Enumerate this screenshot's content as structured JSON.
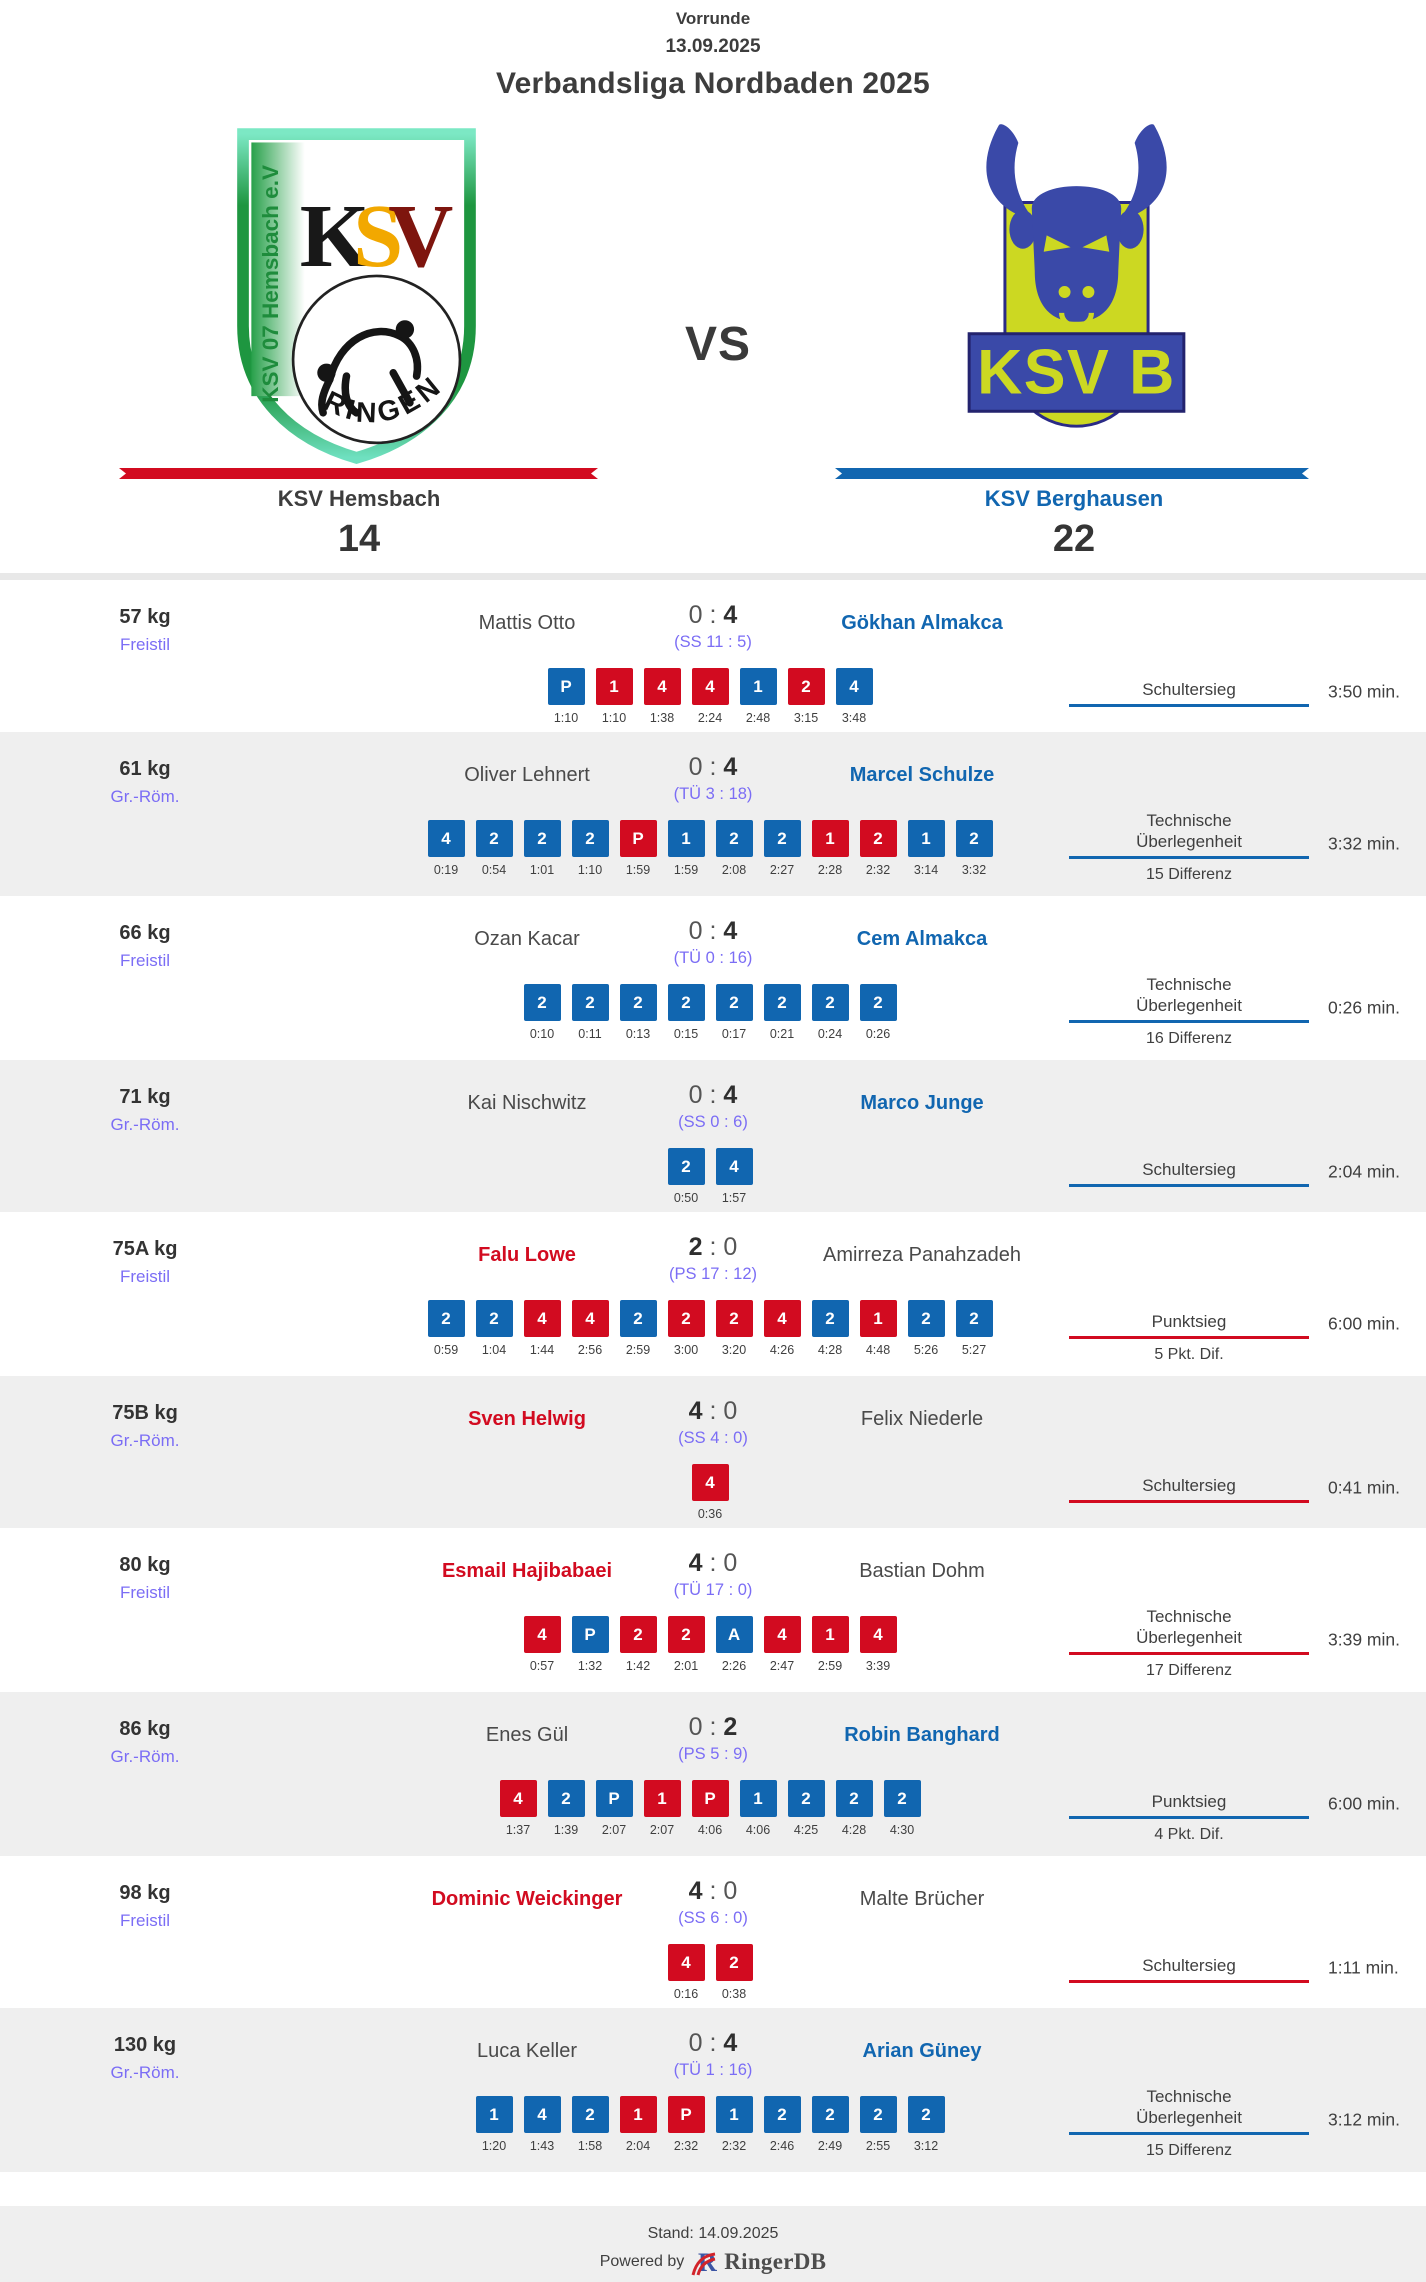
{
  "header": {
    "round": "Vorrunde",
    "date": "13.09.2025",
    "league": "Verbandsliga Nordbaden 2025",
    "vs": "VS"
  },
  "home_team": {
    "name": "KSV Hemsbach",
    "score": "14"
  },
  "away_team": {
    "name": "KSV Berghausen",
    "score": "22"
  },
  "colors": {
    "home": "#d20b20",
    "away": "#1166b0",
    "style_label": "#7b6df5",
    "row_alt_background": "#efefef"
  },
  "bouts": [
    {
      "weight": "57 kg",
      "style": "Freistil",
      "home": "Mattis Otto",
      "away": "Gökhan Almakca",
      "winner": "away",
      "score_home": "0",
      "score_away": "4",
      "detail": "(SS 11 : 5)",
      "result_lines": [
        "Schultersieg"
      ],
      "result_sub": "",
      "duration": "3:50 min.",
      "points": [
        {
          "v": "P",
          "s": "a"
        },
        {
          "v": "1",
          "s": "h"
        },
        {
          "v": "4",
          "s": "h"
        },
        {
          "v": "4",
          "s": "h"
        },
        {
          "v": "1",
          "s": "a"
        },
        {
          "v": "2",
          "s": "h"
        },
        {
          "v": "4",
          "s": "a"
        }
      ],
      "times": [
        "1:10",
        "1:10",
        "1:38",
        "2:24",
        "2:48",
        "3:15",
        "3:48"
      ]
    },
    {
      "weight": "61 kg",
      "style": "Gr.-Röm.",
      "home": "Oliver Lehnert",
      "away": "Marcel Schulze",
      "winner": "away",
      "score_home": "0",
      "score_away": "4",
      "detail": "(TÜ 3 : 18)",
      "result_lines": [
        "Technische",
        "Überlegenheit"
      ],
      "result_sub": "15 Differenz",
      "duration": "3:32 min.",
      "points": [
        {
          "v": "4",
          "s": "a"
        },
        {
          "v": "2",
          "s": "a"
        },
        {
          "v": "2",
          "s": "a"
        },
        {
          "v": "2",
          "s": "a"
        },
        {
          "v": "P",
          "s": "h"
        },
        {
          "v": "1",
          "s": "a"
        },
        {
          "v": "2",
          "s": "a"
        },
        {
          "v": "2",
          "s": "a"
        },
        {
          "v": "1",
          "s": "h"
        },
        {
          "v": "2",
          "s": "h"
        },
        {
          "v": "1",
          "s": "a"
        },
        {
          "v": "2",
          "s": "a"
        }
      ],
      "times": [
        "0:19",
        "0:54",
        "1:01",
        "1:10",
        "1:59",
        "1:59",
        "2:08",
        "2:27",
        "2:28",
        "2:32",
        "3:14",
        "3:32"
      ]
    },
    {
      "weight": "66 kg",
      "style": "Freistil",
      "home": "Ozan Kacar",
      "away": "Cem Almakca",
      "winner": "away",
      "score_home": "0",
      "score_away": "4",
      "detail": "(TÜ 0 : 16)",
      "result_lines": [
        "Technische",
        "Überlegenheit"
      ],
      "result_sub": "16 Differenz",
      "duration": "0:26 min.",
      "points": [
        {
          "v": "2",
          "s": "a"
        },
        {
          "v": "2",
          "s": "a"
        },
        {
          "v": "2",
          "s": "a"
        },
        {
          "v": "2",
          "s": "a"
        },
        {
          "v": "2",
          "s": "a"
        },
        {
          "v": "2",
          "s": "a"
        },
        {
          "v": "2",
          "s": "a"
        },
        {
          "v": "2",
          "s": "a"
        }
      ],
      "times": [
        "0:10",
        "0:11",
        "0:13",
        "0:15",
        "0:17",
        "0:21",
        "0:24",
        "0:26"
      ]
    },
    {
      "weight": "71 kg",
      "style": "Gr.-Röm.",
      "home": "Kai Nischwitz",
      "away": "Marco Junge",
      "winner": "away",
      "score_home": "0",
      "score_away": "4",
      "detail": "(SS 0 : 6)",
      "result_lines": [
        "Schultersieg"
      ],
      "result_sub": "",
      "duration": "2:04 min.",
      "points": [
        {
          "v": "2",
          "s": "a"
        },
        {
          "v": "4",
          "s": "a"
        }
      ],
      "times": [
        "0:50",
        "1:57"
      ]
    },
    {
      "weight": "75A kg",
      "style": "Freistil",
      "home": "Falu Lowe",
      "away": "Amirreza Panahzadeh",
      "winner": "home",
      "score_home": "2",
      "score_away": "0",
      "detail": "(PS 17 : 12)",
      "result_lines": [
        "Punktsieg"
      ],
      "result_sub": "5 Pkt. Dif.",
      "duration": "6:00 min.",
      "points": [
        {
          "v": "2",
          "s": "a"
        },
        {
          "v": "2",
          "s": "a"
        },
        {
          "v": "4",
          "s": "h"
        },
        {
          "v": "4",
          "s": "h"
        },
        {
          "v": "2",
          "s": "a"
        },
        {
          "v": "2",
          "s": "h"
        },
        {
          "v": "2",
          "s": "h"
        },
        {
          "v": "4",
          "s": "h"
        },
        {
          "v": "2",
          "s": "a"
        },
        {
          "v": "1",
          "s": "h"
        },
        {
          "v": "2",
          "s": "a"
        },
        {
          "v": "2",
          "s": "a"
        }
      ],
      "times": [
        "0:59",
        "1:04",
        "1:44",
        "2:56",
        "2:59",
        "3:00",
        "3:20",
        "4:26",
        "4:28",
        "4:48",
        "5:26",
        "5:27"
      ]
    },
    {
      "weight": "75B kg",
      "style": "Gr.-Röm.",
      "home": "Sven Helwig",
      "away": "Felix Niederle",
      "winner": "home",
      "score_home": "4",
      "score_away": "0",
      "detail": "(SS 4 : 0)",
      "result_lines": [
        "Schultersieg"
      ],
      "result_sub": "",
      "duration": "0:41 min.",
      "points": [
        {
          "v": "4",
          "s": "h"
        }
      ],
      "times": [
        "0:36"
      ]
    },
    {
      "weight": "80 kg",
      "style": "Freistil",
      "home": "Esmail Hajibabaei",
      "away": "Bastian Dohm",
      "winner": "home",
      "score_home": "4",
      "score_away": "0",
      "detail": "(TÜ 17 : 0)",
      "result_lines": [
        "Technische",
        "Überlegenheit"
      ],
      "result_sub": "17 Differenz",
      "duration": "3:39 min.",
      "points": [
        {
          "v": "4",
          "s": "h"
        },
        {
          "v": "P",
          "s": "a"
        },
        {
          "v": "2",
          "s": "h"
        },
        {
          "v": "2",
          "s": "h"
        },
        {
          "v": "A",
          "s": "a"
        },
        {
          "v": "4",
          "s": "h"
        },
        {
          "v": "1",
          "s": "h"
        },
        {
          "v": "4",
          "s": "h"
        }
      ],
      "times": [
        "0:57",
        "1:32",
        "1:42",
        "2:01",
        "2:26",
        "2:47",
        "2:59",
        "3:39"
      ]
    },
    {
      "weight": "86 kg",
      "style": "Gr.-Röm.",
      "home": "Enes Gül",
      "away": "Robin Banghard",
      "winner": "away",
      "score_home": "0",
      "score_away": "2",
      "detail": "(PS 5 : 9)",
      "result_lines": [
        "Punktsieg"
      ],
      "result_sub": "4 Pkt. Dif.",
      "duration": "6:00 min.",
      "points": [
        {
          "v": "4",
          "s": "h"
        },
        {
          "v": "2",
          "s": "a"
        },
        {
          "v": "P",
          "s": "a"
        },
        {
          "v": "1",
          "s": "h"
        },
        {
          "v": "P",
          "s": "h"
        },
        {
          "v": "1",
          "s": "a"
        },
        {
          "v": "2",
          "s": "a"
        },
        {
          "v": "2",
          "s": "a"
        },
        {
          "v": "2",
          "s": "a"
        }
      ],
      "times": [
        "1:37",
        "1:39",
        "2:07",
        "2:07",
        "4:06",
        "4:06",
        "4:25",
        "4:28",
        "4:30"
      ]
    },
    {
      "weight": "98 kg",
      "style": "Freistil",
      "home": "Dominic Weickinger",
      "away": "Malte Brücher",
      "winner": "home",
      "score_home": "4",
      "score_away": "0",
      "detail": "(SS 6 : 0)",
      "result_lines": [
        "Schultersieg"
      ],
      "result_sub": "",
      "duration": "1:11 min.",
      "points": [
        {
          "v": "4",
          "s": "h"
        },
        {
          "v": "2",
          "s": "h"
        }
      ],
      "times": [
        "0:16",
        "0:38"
      ]
    },
    {
      "weight": "130 kg",
      "style": "Gr.-Röm.",
      "home": "Luca Keller",
      "away": "Arian Güney",
      "winner": "away",
      "score_home": "0",
      "score_away": "4",
      "detail": "(TÜ 1 : 16)",
      "result_lines": [
        "Technische",
        "Überlegenheit"
      ],
      "result_sub": "15 Differenz",
      "duration": "3:12 min.",
      "points": [
        {
          "v": "1",
          "s": "a"
        },
        {
          "v": "4",
          "s": "a"
        },
        {
          "v": "2",
          "s": "a"
        },
        {
          "v": "1",
          "s": "h"
        },
        {
          "v": "P",
          "s": "h"
        },
        {
          "v": "1",
          "s": "a"
        },
        {
          "v": "2",
          "s": "a"
        },
        {
          "v": "2",
          "s": "a"
        },
        {
          "v": "2",
          "s": "a"
        },
        {
          "v": "2",
          "s": "a"
        }
      ],
      "times": [
        "1:20",
        "1:43",
        "1:58",
        "2:04",
        "2:32",
        "2:32",
        "2:46",
        "2:49",
        "2:55",
        "3:12"
      ]
    }
  ],
  "footer": {
    "stand": "Stand: 14.09.2025",
    "powered_by": "Powered by",
    "brand": "RingerDB"
  }
}
